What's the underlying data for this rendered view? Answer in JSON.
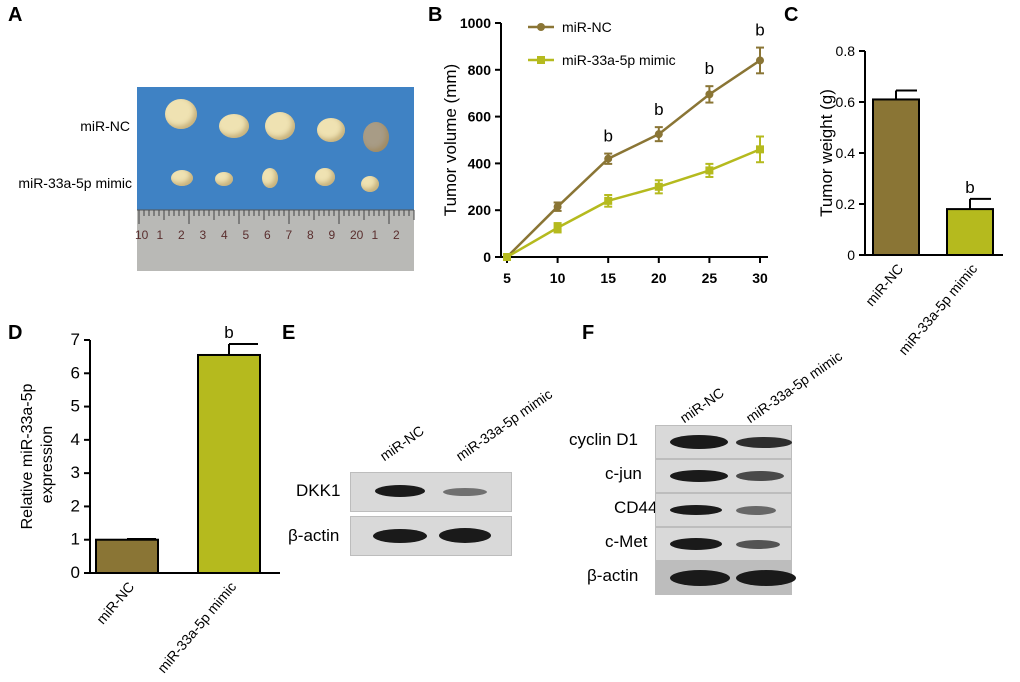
{
  "panel_letters": {
    "A": "A",
    "B": "B",
    "C": "C",
    "D": "D",
    "E": "E",
    "F": "F"
  },
  "panel_a": {
    "row_labels": [
      "miR-NC",
      "miR-33a-5p mimic"
    ],
    "ruler_numbers": [
      "10",
      "1",
      "2",
      "3",
      "4",
      "5",
      "6",
      "7",
      "8",
      "9",
      "20",
      "1",
      "2"
    ]
  },
  "panel_e": {
    "lane_labels": [
      "miR-NC",
      "miR-33a-5p mimic"
    ],
    "rows": [
      "DKK1",
      "β-actin"
    ]
  },
  "panel_f": {
    "lane_labels": [
      "miR-NC",
      "miR-33a-5p mimic"
    ],
    "rows": [
      "cyclin D1",
      "c-jun",
      "CD44",
      "c-Met",
      "β-actin"
    ]
  },
  "colors": {
    "nc": "#8a7535",
    "mimic": "#b5ba1e",
    "photo_bg": "#3f82c4"
  },
  "chart_data": [
    {
      "id": "B",
      "type": "line",
      "xlabel": "",
      "ylabel": "Tumor volume (mm)",
      "x": [
        5,
        10,
        15,
        20,
        25,
        30
      ],
      "xlim": [
        5,
        30
      ],
      "ylim": [
        0,
        1000
      ],
      "yticks": [
        0,
        200,
        400,
        600,
        800,
        1000
      ],
      "legend_position": "top-left",
      "series": [
        {
          "name": "miR-NC",
          "marker": "circle",
          "color": "#8a7535",
          "values": [
            0,
            215,
            420,
            525,
            695,
            840
          ],
          "errors": [
            0,
            18,
            22,
            30,
            35,
            55
          ]
        },
        {
          "name": "miR-33a-5p mimic",
          "marker": "square",
          "color": "#b5ba1e",
          "values": [
            0,
            125,
            240,
            300,
            370,
            460
          ],
          "errors": [
            0,
            20,
            25,
            28,
            28,
            55
          ]
        }
      ],
      "annotations": [
        {
          "x": 15,
          "text": "b"
        },
        {
          "x": 20,
          "text": "b"
        },
        {
          "x": 25,
          "text": "b"
        },
        {
          "x": 30,
          "text": "b"
        }
      ]
    },
    {
      "id": "C",
      "type": "bar",
      "ylabel": "Tumor weight (g)",
      "categories": [
        "miR-NC",
        "miR-33a-5p mimic"
      ],
      "values": [
        0.61,
        0.18
      ],
      "errors": [
        0.035,
        0.04
      ],
      "colors": [
        "#8a7535",
        "#b5ba1e"
      ],
      "ylim": [
        0,
        0.8
      ],
      "yticks": [
        "0",
        "0.2",
        "0.4",
        "0.6",
        "0.8"
      ],
      "annotations": [
        {
          "category": "miR-33a-5p mimic",
          "text": "b"
        }
      ]
    },
    {
      "id": "D",
      "type": "bar",
      "ylabel_lines": [
        "Relative  miR-33a-5p",
        "expression"
      ],
      "categories": [
        "miR-NC",
        "miR-33a-5p mimic"
      ],
      "values": [
        1.0,
        6.55
      ],
      "errors": [
        0.02,
        0.33
      ],
      "colors": [
        "#8a7535",
        "#b5ba1e"
      ],
      "ylim": [
        0,
        7
      ],
      "yticks": [
        "0",
        "1",
        "2",
        "3",
        "4",
        "5",
        "6",
        "7"
      ],
      "annotations": [
        {
          "category": "miR-33a-5p mimic",
          "text": "b"
        }
      ]
    }
  ]
}
